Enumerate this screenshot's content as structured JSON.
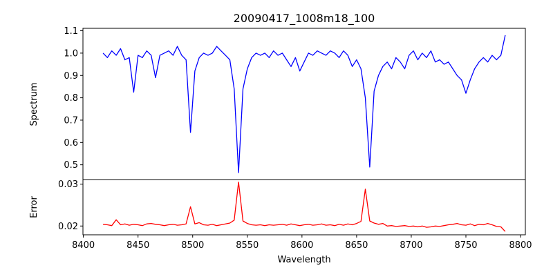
{
  "chart_data": [
    {
      "type": "line",
      "title": "20090417_1008m18_100",
      "xlabel": "",
      "ylabel": "Spectrum",
      "xlim": [
        8399.6,
        8804.4
      ],
      "ylim": [
        0.434,
        1.111
      ],
      "yticks": [
        "0.5",
        "0.6",
        "0.7",
        "0.8",
        "0.9",
        "1.0",
        "1.1"
      ],
      "ytick_values": [
        0.5,
        0.6,
        0.7,
        0.8,
        0.9,
        1.0,
        1.1
      ],
      "color": "#0000ff",
      "x_start": 8418,
      "x_step": 4,
      "values": [
        1.0,
        0.98,
        1.01,
        0.99,
        1.02,
        0.97,
        0.98,
        0.825,
        0.99,
        0.98,
        1.01,
        0.99,
        0.89,
        0.99,
        1.0,
        1.01,
        0.99,
        1.03,
        0.99,
        0.97,
        0.645,
        0.92,
        0.98,
        1.0,
        0.99,
        1.0,
        1.03,
        1.01,
        0.99,
        0.97,
        0.84,
        0.465,
        0.84,
        0.93,
        0.98,
        1.0,
        0.99,
        1.0,
        0.98,
        1.01,
        0.99,
        1.0,
        0.97,
        0.94,
        0.98,
        0.92,
        0.96,
        1.0,
        0.99,
        1.01,
        1.0,
        0.99,
        1.01,
        1.0,
        0.98,
        1.01,
        0.99,
        0.94,
        0.97,
        0.93,
        0.8,
        0.49,
        0.83,
        0.9,
        0.94,
        0.96,
        0.93,
        0.98,
        0.96,
        0.93,
        0.99,
        1.01,
        0.97,
        1.0,
        0.98,
        1.01,
        0.96,
        0.97,
        0.95,
        0.96,
        0.93,
        0.9,
        0.88,
        0.82,
        0.88,
        0.93,
        0.96,
        0.98,
        0.96,
        0.99,
        0.97,
        0.99,
        1.08
      ]
    },
    {
      "type": "line",
      "title": "",
      "xlabel": "Wavelength",
      "ylabel": "Error",
      "xlim": [
        8399.6,
        8804.4
      ],
      "ylim": [
        0.0179,
        0.0311
      ],
      "yticks": [
        "0.02",
        "0.03"
      ],
      "ytick_values": [
        0.02,
        0.03
      ],
      "xticks": [
        "8400",
        "8450",
        "8500",
        "8550",
        "8600",
        "8650",
        "8700",
        "8750",
        "8800"
      ],
      "xtick_values": [
        8400,
        8450,
        8500,
        8550,
        8600,
        8650,
        8700,
        8750,
        8800
      ],
      "color": "#ff0000",
      "x_start": 8418,
      "x_step": 4,
      "values": [
        0.0204,
        0.0203,
        0.0201,
        0.0215,
        0.0203,
        0.0205,
        0.0202,
        0.0204,
        0.0203,
        0.0201,
        0.0205,
        0.0206,
        0.0204,
        0.0203,
        0.0201,
        0.0203,
        0.0204,
        0.0202,
        0.0203,
        0.0205,
        0.0246,
        0.0205,
        0.0208,
        0.0203,
        0.0202,
        0.0204,
        0.0201,
        0.0203,
        0.0205,
        0.0207,
        0.0214,
        0.0305,
        0.0212,
        0.0206,
        0.0203,
        0.0202,
        0.0203,
        0.0201,
        0.0203,
        0.0202,
        0.0203,
        0.0204,
        0.0202,
        0.0205,
        0.0203,
        0.0201,
        0.0203,
        0.0204,
        0.0202,
        0.0203,
        0.0205,
        0.0202,
        0.0203,
        0.0201,
        0.0204,
        0.0202,
        0.0205,
        0.0203,
        0.0206,
        0.0211,
        0.0288,
        0.0212,
        0.0207,
        0.0204,
        0.0206,
        0.02,
        0.0201,
        0.0199,
        0.02,
        0.0201,
        0.0199,
        0.02,
        0.0198,
        0.02,
        0.0197,
        0.0198,
        0.02,
        0.0199,
        0.0201,
        0.0203,
        0.0204,
        0.0206,
        0.0203,
        0.0202,
        0.0205,
        0.0201,
        0.0204,
        0.0203,
        0.0206,
        0.0203,
        0.0199,
        0.0198,
        0.0187
      ]
    }
  ]
}
